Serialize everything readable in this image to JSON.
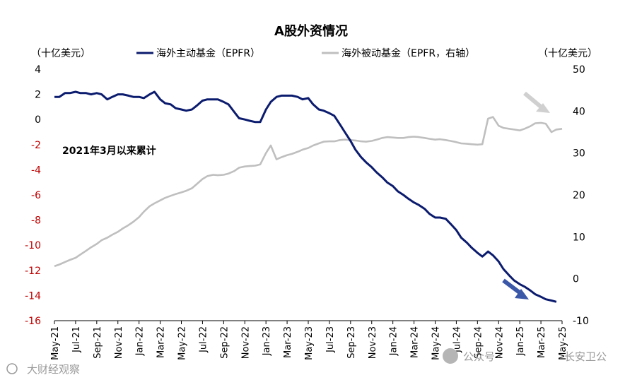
{
  "chart_data": {
    "type": "line",
    "title": "A股外资情况",
    "left_unit": "（十亿美元）",
    "right_unit": "（十亿美元）",
    "annotation": "2021年3月以来累计",
    "left_axis": {
      "range": [
        -16,
        4
      ],
      "ticks": [
        4,
        2,
        0,
        -2,
        -4,
        -6,
        -8,
        -10,
        -12,
        -14,
        -16
      ],
      "negative_color": "#c00000"
    },
    "right_axis": {
      "range": [
        -10,
        50
      ],
      "ticks": [
        50,
        40,
        30,
        20,
        10,
        0,
        -10
      ]
    },
    "x_axis": {
      "start": "2021-05",
      "end": "2025-05",
      "tick_labels": [
        "May-21",
        "Jul-21",
        "Sep-21",
        "Nov-21",
        "Jan-22",
        "Mar-22",
        "May-22",
        "Jul-22",
        "Sep-22",
        "Nov-22",
        "Jan-23",
        "Mar-23",
        "May-23",
        "Jul-23",
        "Sep-23",
        "Nov-23",
        "Jan-24",
        "Mar-24",
        "May-24",
        "Jul-24",
        "Sep-24",
        "Nov-24",
        "Jan-25",
        "Mar-25",
        "May-25"
      ]
    },
    "series": [
      {
        "name": "海外主动基金（EPFR）",
        "axis": "left",
        "color": "#0b1b6e",
        "points": [
          [
            "2021-05-01",
            1.8
          ],
          [
            "2021-05-15",
            1.8
          ],
          [
            "2021-06-01",
            2.1
          ],
          [
            "2021-06-15",
            2.1
          ],
          [
            "2021-07-01",
            2.2
          ],
          [
            "2021-07-15",
            2.1
          ],
          [
            "2021-08-01",
            2.1
          ],
          [
            "2021-08-15",
            2.0
          ],
          [
            "2021-09-01",
            2.1
          ],
          [
            "2021-09-15",
            2.0
          ],
          [
            "2021-10-01",
            1.6
          ],
          [
            "2021-10-15",
            1.8
          ],
          [
            "2021-11-01",
            2.0
          ],
          [
            "2021-11-15",
            2.0
          ],
          [
            "2021-12-01",
            1.9
          ],
          [
            "2021-12-15",
            1.8
          ],
          [
            "2022-01-01",
            1.8
          ],
          [
            "2022-01-15",
            1.7
          ],
          [
            "2022-02-01",
            2.0
          ],
          [
            "2022-02-15",
            2.2
          ],
          [
            "2022-03-01",
            1.6
          ],
          [
            "2022-03-15",
            1.3
          ],
          [
            "2022-04-01",
            1.2
          ],
          [
            "2022-04-15",
            0.9
          ],
          [
            "2022-05-01",
            0.8
          ],
          [
            "2022-05-15",
            0.7
          ],
          [
            "2022-06-01",
            0.8
          ],
          [
            "2022-06-15",
            1.1
          ],
          [
            "2022-07-01",
            1.5
          ],
          [
            "2022-07-15",
            1.6
          ],
          [
            "2022-08-01",
            1.6
          ],
          [
            "2022-08-15",
            1.6
          ],
          [
            "2022-09-01",
            1.4
          ],
          [
            "2022-09-15",
            1.2
          ],
          [
            "2022-10-01",
            0.6
          ],
          [
            "2022-10-15",
            0.1
          ],
          [
            "2022-11-01",
            0.0
          ],
          [
            "2022-11-15",
            -0.1
          ],
          [
            "2022-12-01",
            -0.2
          ],
          [
            "2022-12-15",
            -0.2
          ],
          [
            "2023-01-01",
            0.8
          ],
          [
            "2023-01-15",
            1.4
          ],
          [
            "2023-02-01",
            1.8
          ],
          [
            "2023-02-15",
            1.9
          ],
          [
            "2023-03-01",
            1.9
          ],
          [
            "2023-03-15",
            1.9
          ],
          [
            "2023-04-01",
            1.8
          ],
          [
            "2023-04-15",
            1.6
          ],
          [
            "2023-05-01",
            1.7
          ],
          [
            "2023-05-15",
            1.2
          ],
          [
            "2023-06-01",
            0.8
          ],
          [
            "2023-06-15",
            0.7
          ],
          [
            "2023-07-01",
            0.5
          ],
          [
            "2023-07-15",
            0.3
          ],
          [
            "2023-08-01",
            -0.4
          ],
          [
            "2023-08-15",
            -1.0
          ],
          [
            "2023-09-01",
            -1.7
          ],
          [
            "2023-09-15",
            -2.4
          ],
          [
            "2023-10-01",
            -3.0
          ],
          [
            "2023-10-15",
            -3.4
          ],
          [
            "2023-11-01",
            -3.8
          ],
          [
            "2023-11-15",
            -4.2
          ],
          [
            "2023-12-01",
            -4.6
          ],
          [
            "2023-12-15",
            -5.0
          ],
          [
            "2024-01-01",
            -5.3
          ],
          [
            "2024-01-15",
            -5.7
          ],
          [
            "2024-02-01",
            -6.0
          ],
          [
            "2024-02-15",
            -6.3
          ],
          [
            "2024-03-01",
            -6.6
          ],
          [
            "2024-03-15",
            -6.8
          ],
          [
            "2024-04-01",
            -7.1
          ],
          [
            "2024-04-15",
            -7.5
          ],
          [
            "2024-05-01",
            -7.8
          ],
          [
            "2024-05-15",
            -7.8
          ],
          [
            "2024-06-01",
            -7.9
          ],
          [
            "2024-06-15",
            -8.3
          ],
          [
            "2024-07-01",
            -8.8
          ],
          [
            "2024-07-15",
            -9.4
          ],
          [
            "2024-08-01",
            -9.8
          ],
          [
            "2024-08-15",
            -10.2
          ],
          [
            "2024-09-01",
            -10.6
          ],
          [
            "2024-09-15",
            -10.9
          ],
          [
            "2024-10-01",
            -10.5
          ],
          [
            "2024-10-15",
            -10.8
          ],
          [
            "2024-11-01",
            -11.3
          ],
          [
            "2024-11-15",
            -11.9
          ],
          [
            "2024-12-01",
            -12.4
          ],
          [
            "2024-12-15",
            -12.8
          ],
          [
            "2025-01-01",
            -13.1
          ],
          [
            "2025-01-15",
            -13.3
          ],
          [
            "2025-02-01",
            -13.6
          ],
          [
            "2025-02-15",
            -13.9
          ],
          [
            "2025-03-01",
            -14.1
          ],
          [
            "2025-03-15",
            -14.3
          ],
          [
            "2025-04-01",
            -14.4
          ],
          [
            "2025-04-15",
            -14.5
          ]
        ]
      },
      {
        "name": "海外被动基金（EPFR，右轴）",
        "axis": "right",
        "color": "#bfbfbf",
        "points": [
          [
            "2021-05-01",
            3.0
          ],
          [
            "2021-05-15",
            3.4
          ],
          [
            "2021-06-01",
            4.0
          ],
          [
            "2021-06-15",
            4.5
          ],
          [
            "2021-07-01",
            5.0
          ],
          [
            "2021-07-15",
            5.8
          ],
          [
            "2021-08-01",
            6.7
          ],
          [
            "2021-08-15",
            7.5
          ],
          [
            "2021-09-01",
            8.3
          ],
          [
            "2021-09-15",
            9.2
          ],
          [
            "2021-10-01",
            9.8
          ],
          [
            "2021-10-15",
            10.5
          ],
          [
            "2021-11-01",
            11.2
          ],
          [
            "2021-11-15",
            12.0
          ],
          [
            "2021-12-01",
            12.8
          ],
          [
            "2021-12-15",
            13.6
          ],
          [
            "2022-01-01",
            14.7
          ],
          [
            "2022-01-15",
            16.0
          ],
          [
            "2022-02-01",
            17.3
          ],
          [
            "2022-02-15",
            18.0
          ],
          [
            "2022-03-01",
            18.7
          ],
          [
            "2022-03-15",
            19.3
          ],
          [
            "2022-04-01",
            19.8
          ],
          [
            "2022-04-15",
            20.2
          ],
          [
            "2022-05-01",
            20.6
          ],
          [
            "2022-05-15",
            21.0
          ],
          [
            "2022-06-01",
            21.6
          ],
          [
            "2022-06-15",
            22.6
          ],
          [
            "2022-07-01",
            23.8
          ],
          [
            "2022-07-15",
            24.5
          ],
          [
            "2022-08-01",
            24.8
          ],
          [
            "2022-08-15",
            24.7
          ],
          [
            "2022-09-01",
            24.8
          ],
          [
            "2022-09-15",
            25.1
          ],
          [
            "2022-10-01",
            25.7
          ],
          [
            "2022-10-15",
            26.5
          ],
          [
            "2022-11-01",
            26.8
          ],
          [
            "2022-11-15",
            26.9
          ],
          [
            "2022-12-01",
            27.0
          ],
          [
            "2022-12-15",
            27.3
          ],
          [
            "2023-01-01",
            30.0
          ],
          [
            "2023-01-15",
            31.8
          ],
          [
            "2023-02-01",
            28.5
          ],
          [
            "2023-02-15",
            29.0
          ],
          [
            "2023-03-01",
            29.5
          ],
          [
            "2023-03-15",
            29.8
          ],
          [
            "2023-04-01",
            30.3
          ],
          [
            "2023-04-15",
            30.8
          ],
          [
            "2023-05-01",
            31.2
          ],
          [
            "2023-05-15",
            31.8
          ],
          [
            "2023-06-01",
            32.3
          ],
          [
            "2023-06-15",
            32.7
          ],
          [
            "2023-07-01",
            32.8
          ],
          [
            "2023-07-15",
            32.8
          ],
          [
            "2023-08-01",
            33.1
          ],
          [
            "2023-08-15",
            33.2
          ],
          [
            "2023-09-01",
            33.1
          ],
          [
            "2023-09-15",
            33.0
          ],
          [
            "2023-10-01",
            32.8
          ],
          [
            "2023-10-15",
            32.7
          ],
          [
            "2023-11-01",
            32.9
          ],
          [
            "2023-11-15",
            33.2
          ],
          [
            "2023-12-01",
            33.6
          ],
          [
            "2023-12-15",
            33.8
          ],
          [
            "2024-01-01",
            33.7
          ],
          [
            "2024-01-15",
            33.6
          ],
          [
            "2024-02-01",
            33.6
          ],
          [
            "2024-02-15",
            33.8
          ],
          [
            "2024-03-01",
            33.9
          ],
          [
            "2024-03-15",
            33.8
          ],
          [
            "2024-04-01",
            33.6
          ],
          [
            "2024-04-15",
            33.4
          ],
          [
            "2024-05-01",
            33.2
          ],
          [
            "2024-05-15",
            33.3
          ],
          [
            "2024-06-01",
            33.1
          ],
          [
            "2024-06-15",
            32.9
          ],
          [
            "2024-07-01",
            32.6
          ],
          [
            "2024-07-15",
            32.3
          ],
          [
            "2024-08-01",
            32.2
          ],
          [
            "2024-08-15",
            32.1
          ],
          [
            "2024-09-01",
            32.0
          ],
          [
            "2024-09-15",
            32.1
          ],
          [
            "2024-10-01",
            38.2
          ],
          [
            "2024-10-15",
            38.6
          ],
          [
            "2024-11-01",
            36.5
          ],
          [
            "2024-11-15",
            36.0
          ],
          [
            "2024-12-01",
            35.8
          ],
          [
            "2024-12-15",
            35.6
          ],
          [
            "2025-01-01",
            35.4
          ],
          [
            "2025-01-15",
            35.8
          ],
          [
            "2025-02-01",
            36.4
          ],
          [
            "2025-02-15",
            37.1
          ],
          [
            "2025-03-01",
            37.2
          ],
          [
            "2025-03-15",
            37.0
          ],
          [
            "2025-04-01",
            35.0
          ],
          [
            "2025-04-15",
            35.6
          ],
          [
            "2025-05-01",
            35.8
          ]
        ]
      }
    ],
    "grid": false,
    "legend_position": "top"
  },
  "watermarks": {
    "left": "大财经观察",
    "right_prefix": "公众号 · ",
    "right_name": "长安卫公"
  }
}
